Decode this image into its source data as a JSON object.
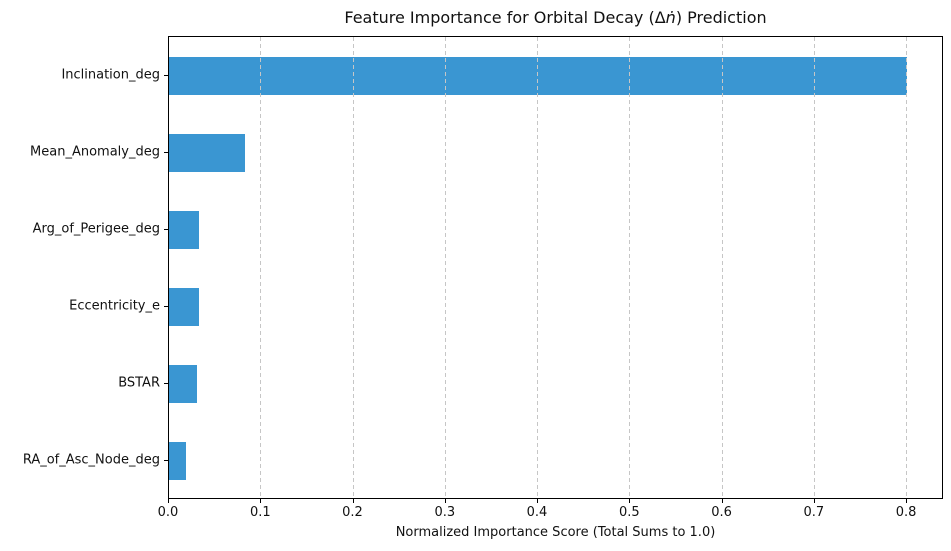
{
  "chart_data": {
    "type": "bar",
    "orientation": "horizontal",
    "title": "Feature Importance for Orbital Decay (Δṅ) Prediction",
    "title_parts": {
      "prefix": "Feature Importance for Orbital Decay (Δ",
      "math": "ṅ",
      "suffix": ") Prediction"
    },
    "xlabel": "Normalized Importance Score (Total Sums to 1.0)",
    "categories": [
      "Inclination_deg",
      "Mean_Anomaly_deg",
      "Arg_of_Perigee_deg",
      "Eccentricity_e",
      "BSTAR",
      "RA_of_Asc_Node_deg"
    ],
    "values": [
      0.8,
      0.082,
      0.032,
      0.032,
      0.03,
      0.018
    ],
    "xlim": [
      0,
      0.84
    ],
    "xticks": [
      0.0,
      0.1,
      0.2,
      0.3,
      0.4,
      0.5,
      0.6,
      0.7,
      0.8
    ],
    "xtick_labels": [
      "0.0",
      "0.1",
      "0.2",
      "0.3",
      "0.4",
      "0.5",
      "0.6",
      "0.7",
      "0.8"
    ],
    "bar_color": "#3a96d2",
    "grid": true,
    "grid_style": "dashed-vertical-above-bars",
    "grid_color": "#c6c6c6",
    "spine_color": "#000000",
    "background_color": "#ffffff",
    "legend": false
  }
}
